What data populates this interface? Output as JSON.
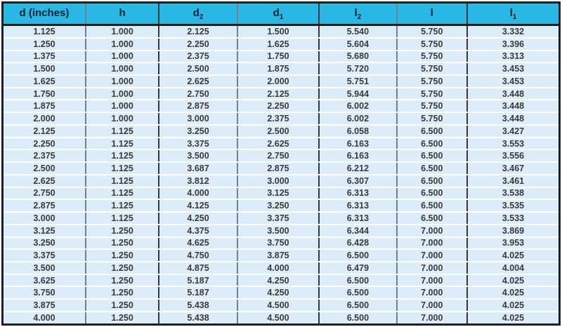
{
  "table": {
    "columns": [
      {
        "base": "d (inches)",
        "sub": ""
      },
      {
        "base": "h",
        "sub": ""
      },
      {
        "base": "d",
        "sub": "2"
      },
      {
        "base": "d",
        "sub": "1"
      },
      {
        "base": "l",
        "sub": "2"
      },
      {
        "base": "l",
        "sub": ""
      },
      {
        "base": "l",
        "sub": "1"
      }
    ],
    "rows": [
      [
        "1.125",
        "1.000",
        "2.125",
        "1.500",
        "5.540",
        "5.750",
        "3.332"
      ],
      [
        "1.250",
        "1.000",
        "2.250",
        "1.625",
        "5.604",
        "5.750",
        "3.396"
      ],
      [
        "1.375",
        "1.000",
        "2.375",
        "1.750",
        "5.680",
        "5.750",
        "3.313"
      ],
      [
        "1.500",
        "1.000",
        "2.500",
        "1.875",
        "5.720",
        "5.750",
        "3.453"
      ],
      [
        "1.625",
        "1.000",
        "2.625",
        "2.000",
        "5.751",
        "5.750",
        "3.453"
      ],
      [
        "1.750",
        "1.000",
        "2.750",
        "2.125",
        "5.944",
        "5.750",
        "3.448"
      ],
      [
        "1.875",
        "1.000",
        "2.875",
        "2.250",
        "6.002",
        "5.750",
        "3.448"
      ],
      [
        "2.000",
        "1.000",
        "3.000",
        "2.375",
        "6.002",
        "5.750",
        "3.448"
      ],
      [
        "2.125",
        "1.125",
        "3.250",
        "2.500",
        "6.058",
        "6.500",
        "3.427"
      ],
      [
        "2.250",
        "1.125",
        "3.375",
        "2.625",
        "6.163",
        "6.500",
        "3.553"
      ],
      [
        "2.375",
        "1.125",
        "3.500",
        "2.750",
        "6.163",
        "6.500",
        "3.556"
      ],
      [
        "2.500",
        "1.125",
        "3.687",
        "2.875",
        "6.212",
        "6.500",
        "3.467"
      ],
      [
        "2.625",
        "1.125",
        "3.812",
        "3.000",
        "6.307",
        "6.500",
        "3.461"
      ],
      [
        "2.750",
        "1.125",
        "4.000",
        "3.125",
        "6.313",
        "6.500",
        "3.538"
      ],
      [
        "2.875",
        "1.125",
        "4.125",
        "3.250",
        "6.313",
        "6.500",
        "3.535"
      ],
      [
        "3.000",
        "1.125",
        "4.250",
        "3.375",
        "6.313",
        "6.500",
        "3.533"
      ],
      [
        "3.125",
        "1.250",
        "4.375",
        "3.500",
        "6.344",
        "7.000",
        "3.869"
      ],
      [
        "3.250",
        "1.250",
        "4.625",
        "3.750",
        "6.428",
        "7.000",
        "3.953"
      ],
      [
        "3.375",
        "1.250",
        "4.750",
        "3.875",
        "6.500",
        "7.000",
        "4.025"
      ],
      [
        "3.500",
        "1.250",
        "4.875",
        "4.000",
        "6.479",
        "7.000",
        "4.004"
      ],
      [
        "3.625",
        "1.250",
        "5.187",
        "4.250",
        "6.500",
        "7.000",
        "4.025"
      ],
      [
        "3.750",
        "1.250",
        "5.187",
        "4.250",
        "6.500",
        "7.000",
        "4.025"
      ],
      [
        "3.875",
        "1.250",
        "5.438",
        "4.500",
        "6.500",
        "7.000",
        "4.025"
      ],
      [
        "4.000",
        "1.250",
        "5.438",
        "4.500",
        "6.500",
        "7.000",
        "4.025"
      ]
    ],
    "colors": {
      "header_bg": "#29b7e5",
      "header_text": "#13222e",
      "row_bg": "#dcecf8",
      "row_divider": "#ffffff",
      "grid_gray": "#70828e",
      "grid_dark": "#33383c",
      "outer_border": "#1d2125",
      "value_text": "#3a3a3a"
    }
  }
}
